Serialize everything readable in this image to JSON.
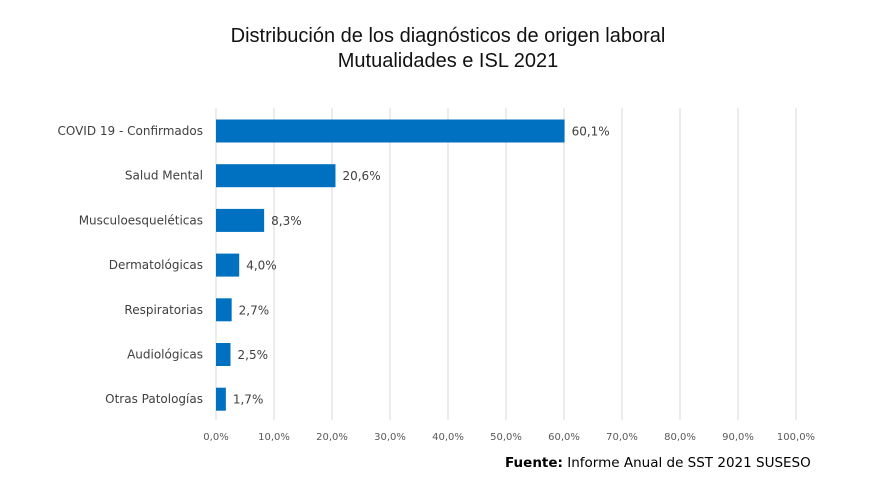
{
  "chart_data": {
    "type": "bar",
    "orientation": "horizontal",
    "title": "Distribución de los diagnósticos de origen laboral",
    "subtitle": "Mutualidades e ISL 2021",
    "categories": [
      "COVID 19 - Confirmados",
      "Salud Mental",
      "Musculoesqueléticas",
      "Dermatológicas",
      "Respiratorias",
      "Audiológicas",
      "Otras Patologías"
    ],
    "values": [
      60.1,
      20.6,
      8.3,
      4.0,
      2.7,
      2.5,
      1.7
    ],
    "data_labels": [
      "60,1%",
      "20,6%",
      "8,3%",
      "4,0%",
      "2,7%",
      "2,5%",
      "1,7%"
    ],
    "xlim": [
      0,
      100
    ],
    "x_ticks": [
      0,
      10,
      20,
      30,
      40,
      50,
      60,
      70,
      80,
      90,
      100
    ],
    "x_tick_labels": [
      "0,0%",
      "10,0%",
      "20,0%",
      "30,0%",
      "40,0%",
      "50,0%",
      "60,0%",
      "70,0%",
      "80,0%",
      "90,0%",
      "100,0%"
    ],
    "grid": "vertical",
    "bar_color": "#0070C0",
    "grid_color": "#D9D9D9"
  },
  "source": {
    "label": "Fuente:",
    "text": "Informe Anual de SST 2021   SUSESO"
  }
}
